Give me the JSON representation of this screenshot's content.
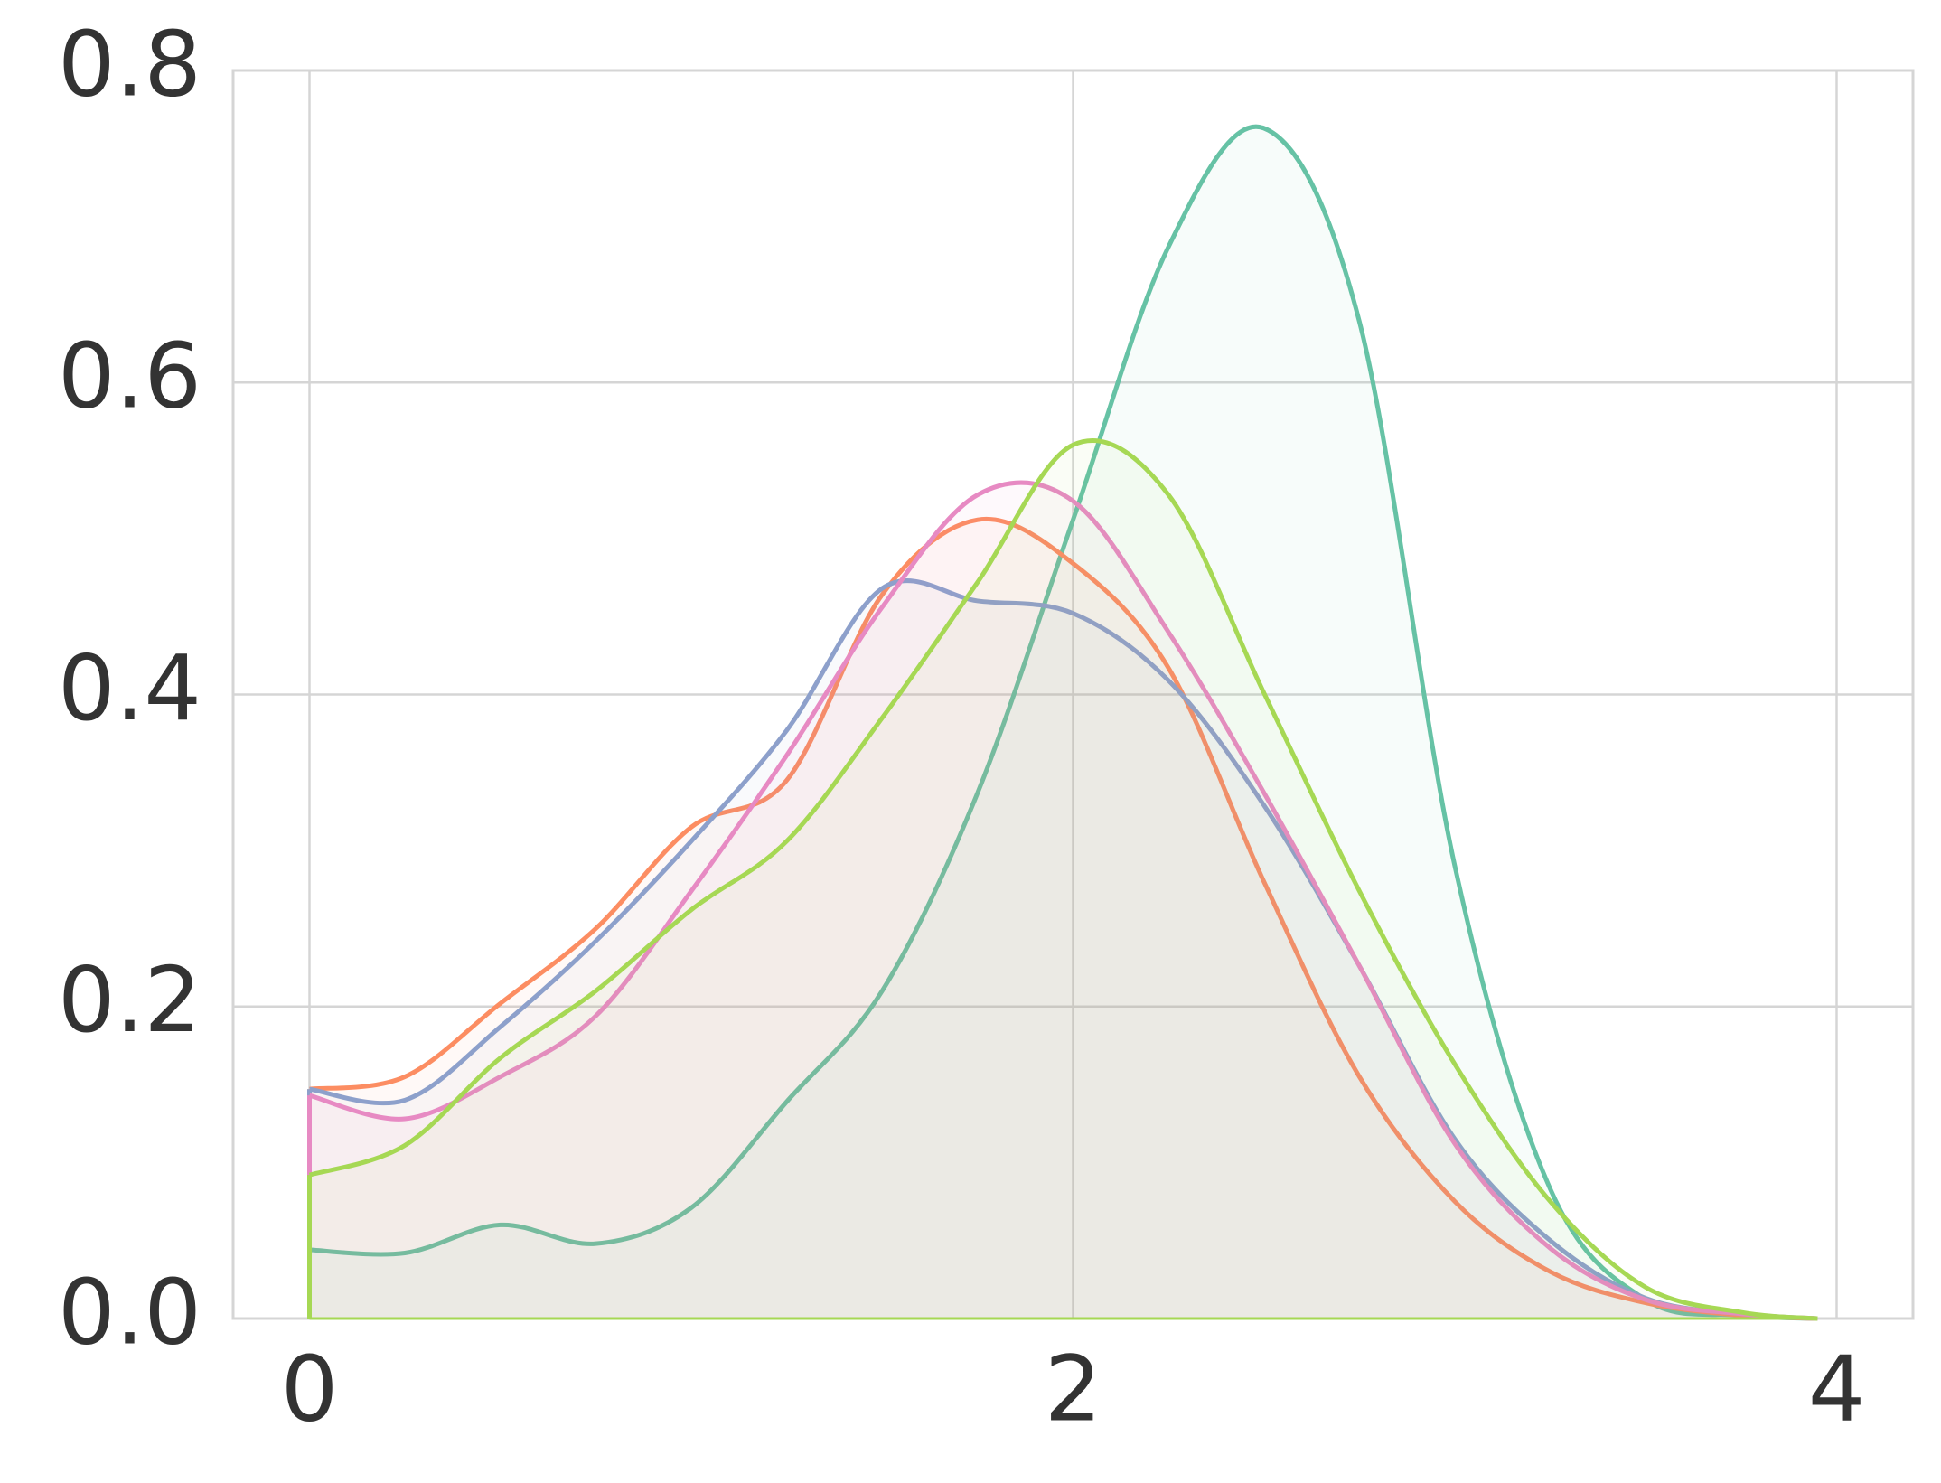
{
  "chart_data": {
    "type": "area-line",
    "x": [
      0,
      0.25,
      0.5,
      0.75,
      1,
      1.25,
      1.5,
      1.75,
      2,
      2.25,
      2.5,
      2.75,
      3,
      3.25,
      3.5,
      3.75,
      3.95
    ],
    "series": [
      {
        "color": "#66c2a5",
        "values": [
          0.044,
          0.042,
          0.06,
          0.048,
          0.071,
          0.139,
          0.21,
          0.337,
          0.512,
          0.687,
          0.763,
          0.639,
          0.29,
          0.083,
          0.012,
          0.002,
          0
        ]
      },
      {
        "color": "#fc8d62",
        "values": [
          0.147,
          0.155,
          0.202,
          0.25,
          0.315,
          0.345,
          0.464,
          0.512,
          0.484,
          0.417,
          0.28,
          0.155,
          0.075,
          0.03,
          0.01,
          0.002,
          0
        ]
      },
      {
        "color": "#8da0cb",
        "values": [
          0.147,
          0.14,
          0.187,
          0.242,
          0.306,
          0.377,
          0.468,
          0.46,
          0.452,
          0.409,
          0.329,
          0.226,
          0.115,
          0.05,
          0.013,
          0.003,
          0
        ]
      },
      {
        "color": "#e78ac3",
        "values": [
          0.143,
          0.128,
          0.155,
          0.194,
          0.274,
          0.361,
          0.456,
          0.528,
          0.524,
          0.44,
          0.337,
          0.226,
          0.112,
          0.045,
          0.012,
          0.003,
          0
        ]
      },
      {
        "color": "#a6d854",
        "values": [
          0.092,
          0.111,
          0.167,
          0.21,
          0.262,
          0.306,
          0.385,
          0.472,
          0.56,
          0.528,
          0.401,
          0.274,
          0.163,
          0.075,
          0.02,
          0.004,
          0
        ]
      }
    ],
    "xlim": [
      -0.2,
      4.2
    ],
    "xticks": [
      0,
      2,
      4
    ],
    "ylim": [
      0,
      0.8
    ],
    "yticks": [
      {
        "value": 0,
        "label": "0.0"
      },
      0.2,
      0.4,
      0.6,
      0.8
    ],
    "grid": true
  }
}
